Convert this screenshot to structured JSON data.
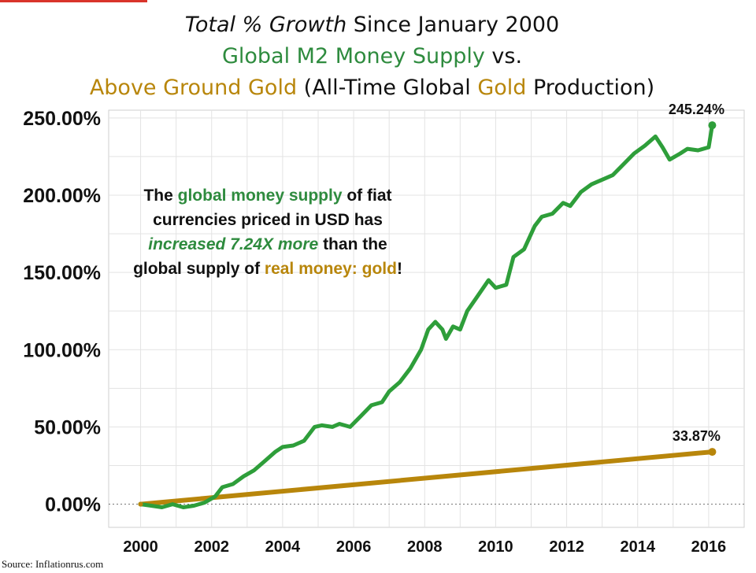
{
  "title": {
    "line1_italic": "Total % Growth",
    "line1_rest": " Since January 2000",
    "line2_green": "Global M2 Money Supply",
    "line2_rest": " vs.",
    "line3_gold": "Above Ground Gold",
    "line3_mid": " (All-Time Global ",
    "line3_gold2": "Gold",
    "line3_end": " Production)"
  },
  "annotation": {
    "p1": "The ",
    "p2_green": "global money supply",
    "p3": " of fiat currencies priced in USD has ",
    "p4_italic": "increased 7.24X more",
    "p5": " than the global supply of ",
    "p6_gold": "real money: gold",
    "p7": "!"
  },
  "source": "Source: Inflationrus.com",
  "colors": {
    "m2": "#2e9e3a",
    "gold": "#b8860b",
    "grid": "#e3e3e3",
    "red_accent": "#d9342b"
  },
  "chart_data": {
    "type": "line",
    "title": "Total % Growth Since January 2000 Global M2 Money Supply vs. Above Ground Gold (All-Time Global Gold Production)",
    "xlabel": "",
    "ylabel": "",
    "xlim": [
      1999.1,
      2017.0
    ],
    "ylim": [
      -15,
      255
    ],
    "y_ticks": [
      0,
      50,
      100,
      150,
      200,
      250
    ],
    "y_tick_labels": [
      "0.00%",
      "50.00%",
      "100.00%",
      "150.00%",
      "200.00%",
      "250.00%"
    ],
    "x_ticks": [
      2000,
      2002,
      2004,
      2006,
      2008,
      2010,
      2012,
      2014,
      2016
    ],
    "x_tick_labels": [
      "2000",
      "2002",
      "2004",
      "2006",
      "2008",
      "2010",
      "2012",
      "2014",
      "2016"
    ],
    "grid": true,
    "legend": "none",
    "series": [
      {
        "name": "Global M2 Money Supply",
        "color": "#2e9e3a",
        "end_label": "245.24%",
        "x": [
          2000.0,
          2000.3,
          2000.6,
          2000.9,
          2001.2,
          2001.5,
          2001.8,
          2002.1,
          2002.3,
          2002.6,
          2002.9,
          2003.2,
          2003.5,
          2003.8,
          2004.0,
          2004.3,
          2004.6,
          2004.9,
          2005.1,
          2005.4,
          2005.6,
          2005.9,
          2006.2,
          2006.5,
          2006.8,
          2007.0,
          2007.3,
          2007.6,
          2007.9,
          2008.1,
          2008.3,
          2008.5,
          2008.6,
          2008.8,
          2009.0,
          2009.2,
          2009.5,
          2009.8,
          2010.0,
          2010.3,
          2010.5,
          2010.8,
          2011.1,
          2011.3,
          2011.6,
          2011.9,
          2012.1,
          2012.4,
          2012.7,
          2013.0,
          2013.3,
          2013.6,
          2013.9,
          2014.2,
          2014.5,
          2014.7,
          2014.9,
          2015.2,
          2015.4,
          2015.7,
          2016.0,
          2016.1
        ],
        "values": [
          0,
          -1,
          -2,
          0,
          -2,
          -1,
          1,
          5,
          11,
          13,
          18,
          22,
          28,
          34,
          37,
          38,
          41,
          50,
          51,
          50,
          52,
          50,
          57,
          64,
          66,
          73,
          79,
          88,
          100,
          113,
          118,
          113,
          107,
          115,
          113,
          125,
          135,
          145,
          140,
          142,
          160,
          165,
          180,
          186,
          188,
          195,
          193,
          202,
          207,
          210,
          213,
          220,
          227,
          232,
          238,
          231,
          223,
          227,
          230,
          229,
          231,
          245.24
        ]
      },
      {
        "name": "Above Ground Gold",
        "color": "#b8860b",
        "end_label": "33.87%",
        "x": [
          2000.0,
          2016.1
        ],
        "values": [
          0,
          33.87
        ]
      }
    ]
  }
}
